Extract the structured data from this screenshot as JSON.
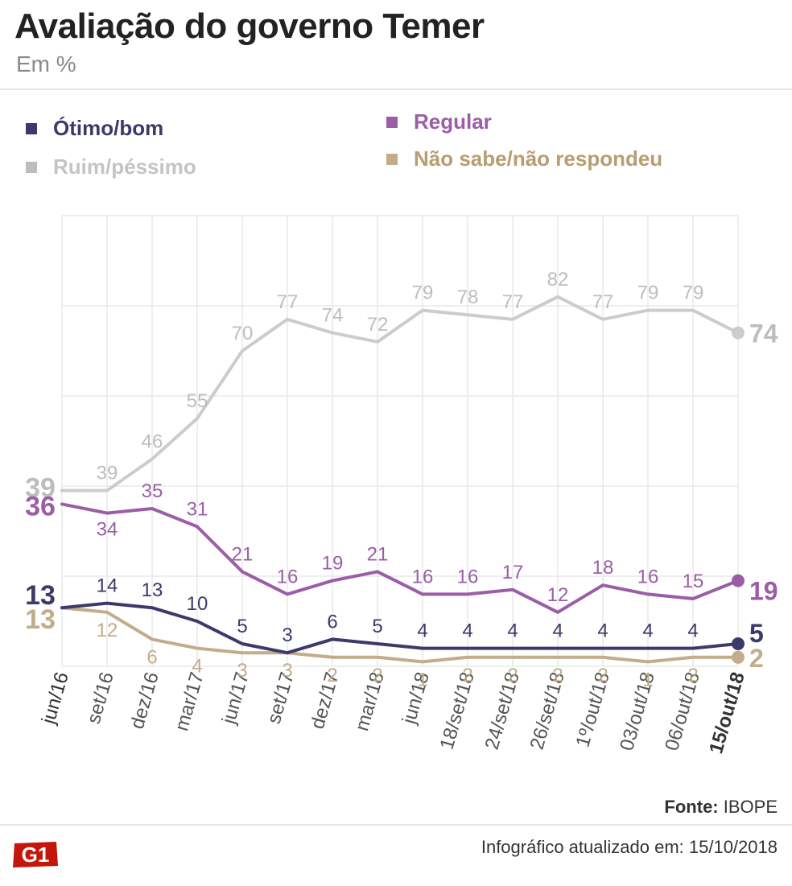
{
  "title": "Avaliação do governo Temer",
  "subtitle": "Em %",
  "footer": {
    "source_label": "Fonte:",
    "source_value": "IBOPE",
    "updated": "Infográfico atualizado em: 15/10/2018",
    "logo": "G1"
  },
  "colors": {
    "otimo": "#3b3a6b",
    "regular": "#9b5ea6",
    "ruim": "#cccccc",
    "nao_sabe": "#c2ac8a",
    "grid": "#e6e6e6"
  },
  "chart_data": {
    "type": "line",
    "title": "Avaliação do governo Temer",
    "subtitle": "Em %",
    "ylim": [
      0,
      100
    ],
    "grid": true,
    "legend": "top",
    "categories": [
      "jun/16",
      "set/16",
      "dez/16",
      "mar/17",
      "jun/17",
      "set/17",
      "dez/17",
      "mar/18",
      "jun/18",
      "18/set/18",
      "24/set/18",
      "26/set/18",
      "1º/out/18",
      "03/out/18",
      "06/out/18",
      "15/out/18"
    ],
    "series": [
      {
        "key": "ruim",
        "name": "Ruim/péssimo",
        "color": "#cccccc",
        "label_color": "#bdbdbd",
        "values": [
          39,
          39,
          46,
          55,
          70,
          77,
          74,
          72,
          79,
          78,
          77,
          82,
          77,
          79,
          79,
          74
        ]
      },
      {
        "key": "regular",
        "name": "Regular",
        "color": "#9b5ea6",
        "label_color": "#9b5ea6",
        "values": [
          36,
          34,
          35,
          31,
          21,
          16,
          19,
          21,
          16,
          16,
          17,
          12,
          18,
          16,
          15,
          19
        ]
      },
      {
        "key": "otimo",
        "name": "Ótimo/bom",
        "color": "#3b3a6b",
        "label_color": "#3b3a6b",
        "values": [
          13,
          14,
          13,
          10,
          5,
          3,
          6,
          5,
          4,
          4,
          4,
          4,
          4,
          4,
          4,
          5
        ]
      },
      {
        "key": "nao_sabe",
        "name": "Não sabe/não respondeu",
        "color": "#c2ac8a",
        "label_color": "#c2ac8a",
        "values": [
          13,
          12,
          6,
          4,
          3,
          3,
          2,
          2,
          1,
          2,
          2,
          2,
          2,
          1,
          2,
          2
        ]
      }
    ]
  }
}
